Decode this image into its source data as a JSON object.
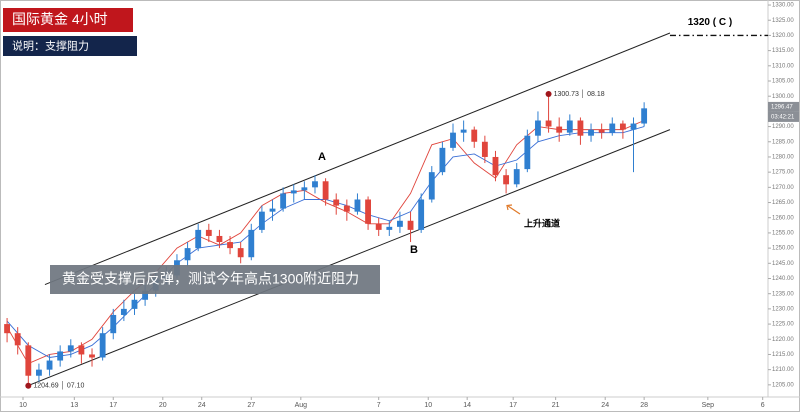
{
  "chart_data": {
    "type": "candlestick",
    "title": "国际黄金  4小时",
    "subtitle": "说明：支撑阻力",
    "annotation": "黄金受支撑后反弹，测试今年高点1300附近阻力",
    "channel_label": "上升通道",
    "point_labels": [
      "A",
      "B"
    ],
    "up_color": "#2f7fd0",
    "down_color": "#e0453c",
    "x": [
      2,
      5,
      8,
      11,
      14,
      17,
      20,
      23,
      26,
      29,
      32,
      35,
      38,
      41,
      44,
      47,
      50,
      53,
      56,
      59,
      62,
      65,
      68,
      71,
      74,
      77,
      80,
      83,
      86,
      89,
      92,
      95,
      98,
      101,
      104,
      107,
      110,
      113,
      116,
      119,
      122,
      125,
      128,
      131,
      134,
      137,
      140,
      143,
      146,
      149,
      152,
      155,
      158,
      161,
      164,
      167,
      170,
      173,
      176,
      179,
      182
    ],
    "open": [
      1225,
      1222,
      1218,
      1208,
      1210,
      1213,
      1216,
      1218,
      1215,
      1214,
      1222,
      1228,
      1230,
      1233,
      1236,
      1240,
      1241,
      1246,
      1250,
      1256,
      1254,
      1252,
      1250,
      1247,
      1256,
      1262,
      1263,
      1268,
      1269,
      1270,
      1272,
      1266,
      1264,
      1262,
      1266,
      1258,
      1256,
      1257,
      1259,
      1256,
      1266,
      1275,
      1283,
      1288,
      1289,
      1285,
      1280,
      1274,
      1271,
      1276,
      1287,
      1292,
      1290,
      1288,
      1292,
      1287,
      1289,
      1288,
      1291,
      1289,
      1291
    ],
    "high": [
      1227,
      1224,
      1219,
      1212,
      1215,
      1218,
      1220,
      1219,
      1217,
      1224,
      1230,
      1233,
      1235,
      1238,
      1242,
      1244,
      1248,
      1252,
      1258,
      1258,
      1256,
      1254,
      1252,
      1258,
      1264,
      1266,
      1270,
      1271,
      1272,
      1274,
      1273,
      1268,
      1266,
      1268,
      1267,
      1260,
      1259,
      1262,
      1262,
      1268,
      1277,
      1285,
      1291,
      1292,
      1290,
      1287,
      1282,
      1276,
      1278,
      1289,
      1295,
      1300.73,
      1293,
      1294,
      1293,
      1291,
      1291,
      1293,
      1292,
      1293,
      1298
    ],
    "low": [
      1219,
      1215,
      1204.69,
      1206,
      1208,
      1211,
      1214,
      1212,
      1211,
      1213,
      1220,
      1226,
      1228,
      1231,
      1234,
      1238,
      1240,
      1244,
      1249,
      1252,
      1250,
      1248,
      1245,
      1246,
      1255,
      1259,
      1262,
      1265,
      1266,
      1268,
      1264,
      1261,
      1259,
      1261,
      1256,
      1254,
      1254,
      1255,
      1252,
      1255,
      1265,
      1274,
      1282,
      1285,
      1283,
      1278,
      1272,
      1268,
      1270,
      1275,
      1285,
      1288,
      1285,
      1287,
      1284,
      1285,
      1286,
      1287,
      1286,
      1275,
      1290
    ],
    "close": [
      1222,
      1218,
      1208,
      1210,
      1213,
      1216,
      1218,
      1215,
      1214,
      1222,
      1228,
      1230,
      1233,
      1236,
      1240,
      1241,
      1246,
      1250,
      1256,
      1254,
      1252,
      1250,
      1247,
      1256,
      1262,
      1263,
      1268,
      1269,
      1270,
      1272,
      1266,
      1264,
      1262,
      1266,
      1258,
      1256,
      1257,
      1259,
      1256,
      1266,
      1275,
      1283,
      1288,
      1289,
      1285,
      1280,
      1274,
      1271,
      1276,
      1287,
      1292,
      1290,
      1288,
      1292,
      1287,
      1289,
      1288,
      1291,
      1289,
      1291,
      1296
    ],
    "ma_x": [
      2,
      8,
      14,
      20,
      26,
      32,
      38,
      44,
      50,
      56,
      62,
      68,
      74,
      80,
      86,
      92,
      98,
      104,
      110,
      116,
      122,
      128,
      134,
      140,
      146,
      152,
      158,
      164,
      170,
      176,
      182
    ],
    "overlays": [
      {
        "color": "#e0453c",
        "values": [
          1224,
          1212,
          1215,
          1216,
          1220,
          1229,
          1236,
          1242,
          1250,
          1254,
          1251,
          1255,
          1264,
          1268,
          1269,
          1265,
          1262,
          1258,
          1258,
          1268,
          1284,
          1286,
          1278,
          1273,
          1284,
          1290,
          1289,
          1289,
          1289,
          1289,
          1292
        ]
      },
      {
        "color": "#3b6fd6",
        "values": [
          1226,
          1218,
          1214,
          1215,
          1218,
          1224,
          1231,
          1238,
          1245,
          1250,
          1251,
          1252,
          1258,
          1263,
          1266,
          1266,
          1264,
          1261,
          1259,
          1262,
          1272,
          1280,
          1281,
          1277,
          1279,
          1285,
          1287,
          1288,
          1288,
          1288,
          1290
        ]
      }
    ],
    "trendlines": [
      {
        "x": [
          12.7,
          189.3
        ],
        "y": [
          1238,
          1320.8
        ]
      },
      {
        "x": [
          8.5,
          189.3
        ],
        "y": [
          1205,
          1289
        ]
      }
    ],
    "level": {
      "value": 1320,
      "x_start": 189.3,
      "label": "1320 ( C )"
    },
    "markers": [
      {
        "x": 8,
        "value": 1204.69,
        "label": "1204.69 │ 07.10"
      },
      {
        "x": 155,
        "value": 1300.73,
        "label": "1300.73 │ 08.18"
      }
    ],
    "last_price": {
      "value": 1296.47,
      "label": "1296.47"
    },
    "countdown": "03:42:21",
    "xlim": [
      0,
      217
    ],
    "ylim": [
      1201,
      1331
    ],
    "xticks": [
      {
        "value": 6.5,
        "label": "10"
      },
      {
        "value": 21,
        "label": "13"
      },
      {
        "value": 32,
        "label": "17"
      },
      {
        "value": 46,
        "label": "20"
      },
      {
        "value": 57,
        "label": "24"
      },
      {
        "value": 71,
        "label": "27"
      },
      {
        "value": 85,
        "label": "Aug"
      },
      {
        "value": 107,
        "label": "7"
      },
      {
        "value": 121,
        "label": "10"
      },
      {
        "value": 132,
        "label": "14"
      },
      {
        "value": 145,
        "label": "17"
      },
      {
        "value": 157,
        "label": "21"
      },
      {
        "value": 171,
        "label": "24"
      },
      {
        "value": 182,
        "label": "28"
      },
      {
        "value": 200,
        "label": "Sep"
      },
      {
        "value": 215.5,
        "label": "6"
      }
    ],
    "yticks": [
      {
        "value": 1205,
        "label": "1205.00"
      },
      {
        "value": 1210,
        "label": "1210.00"
      },
      {
        "value": 1215,
        "label": "1215.00"
      },
      {
        "value": 1220,
        "label": "1220.00"
      },
      {
        "value": 1225,
        "label": "1225.00"
      },
      {
        "value": 1230,
        "label": "1230.00"
      },
      {
        "value": 1235,
        "label": "1235.00"
      },
      {
        "value": 1240,
        "label": "1240.00"
      },
      {
        "value": 1245,
        "label": "1245.00"
      },
      {
        "value": 1250,
        "label": "1250.00"
      },
      {
        "value": 1255,
        "label": "1255.00"
      },
      {
        "value": 1260,
        "label": "1260.00"
      },
      {
        "value": 1265,
        "label": "1265.00"
      },
      {
        "value": 1270,
        "label": "1270.00"
      },
      {
        "value": 1275,
        "label": "1275.00"
      },
      {
        "value": 1280,
        "label": "1280.00"
      },
      {
        "value": 1285,
        "label": "1285.00"
      },
      {
        "value": 1290,
        "label": "1290.00"
      },
      {
        "value": 1295,
        "label": "1295.00"
      },
      {
        "value": 1300,
        "label": "1300.00"
      },
      {
        "value": 1305,
        "label": "1305.00"
      },
      {
        "value": 1310,
        "label": "1310.00"
      },
      {
        "value": 1315,
        "label": "1315.00"
      },
      {
        "value": 1320,
        "label": "1320.00"
      },
      {
        "value": 1325,
        "label": "1325.00"
      },
      {
        "value": 1330,
        "label": "1330.00"
      }
    ]
  }
}
